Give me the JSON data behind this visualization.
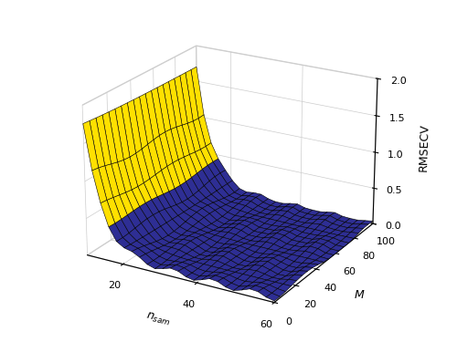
{
  "nsam_vals": [
    10,
    20,
    30,
    40,
    50,
    60
  ],
  "M_vals": [
    0,
    10,
    20,
    30,
    40,
    50,
    60,
    70,
    80,
    90,
    100
  ],
  "zlim": [
    0,
    2
  ],
  "xlabel": "$n_{sam}$",
  "ylabel": "$M$",
  "zlabel": "RMSECV",
  "xticks": [
    20,
    40,
    60
  ],
  "yticks": [
    0,
    20,
    40,
    60,
    80,
    100
  ],
  "zticks": [
    0,
    0.5,
    1.0,
    1.5,
    2.0
  ],
  "yellow_color": [
    1.0,
    0.88,
    0.0,
    1.0
  ],
  "blue_color": [
    0.18,
    0.18,
    0.58,
    1.0
  ],
  "edge_color": "black",
  "background_color": "#FFFFFF",
  "elev": 22,
  "azim": -60
}
